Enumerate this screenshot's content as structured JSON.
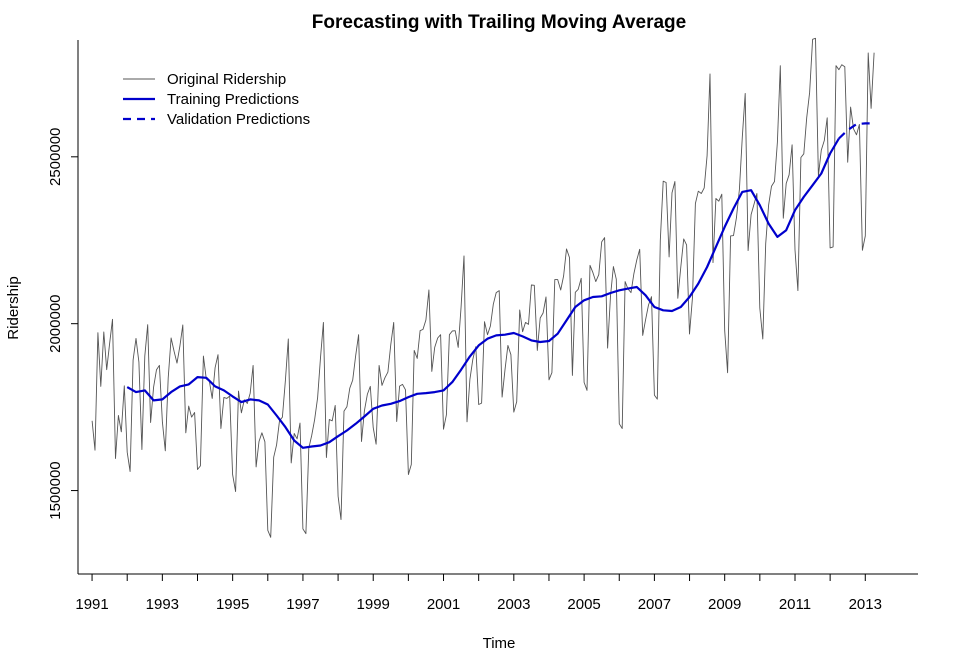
{
  "chart_data": {
    "type": "line",
    "title": "Forecasting with Trailing Moving Average",
    "xlabel": "Time",
    "ylabel": "Ridership",
    "xlim": [
      1990.6,
      2014.5
    ],
    "ylim": [
      1250000,
      2850000
    ],
    "x_ticks": [
      1991,
      1992,
      1993,
      1994,
      1995,
      1996,
      1997,
      1998,
      1999,
      2000,
      2001,
      2002,
      2003,
      2004,
      2005,
      2006,
      2007,
      2008,
      2009,
      2010,
      2011,
      2012,
      2013
    ],
    "x_tick_labels": [
      "1991",
      "1993",
      "1995",
      "1997",
      "1999",
      "2001",
      "2003",
      "2005",
      "2007",
      "2009",
      "2011",
      "2013"
    ],
    "x_tick_label_values": [
      1991,
      1993,
      1995,
      1997,
      1999,
      2001,
      2003,
      2005,
      2007,
      2009,
      2011,
      2013
    ],
    "y_ticks": [
      1500000,
      2000000,
      2500000
    ],
    "y_tick_labels": [
      "1500000",
      "2000000",
      "2500000"
    ],
    "legend": {
      "position": "top-left",
      "entries": [
        {
          "label": "Original Ridership",
          "color": "#555555",
          "style": "solid-thin"
        },
        {
          "label": "Training Predictions",
          "color": "#0000cc",
          "style": "solid-thick"
        },
        {
          "label": "Validation Predictions",
          "color": "#0000cc",
          "style": "dashed-thick"
        }
      ]
    },
    "series": [
      {
        "name": "Original Ridership",
        "color": "#555555",
        "x": [
          1991.0,
          1991.083,
          1991.167,
          1991.25,
          1991.333,
          1991.417,
          1991.5,
          1991.583,
          1991.667,
          1991.75,
          1991.833,
          1991.917,
          1992.0,
          1992.083,
          1992.167,
          1992.25,
          1992.333,
          1992.417,
          1992.5,
          1992.583,
          1992.667,
          1992.75,
          1992.833,
          1992.917,
          1993.0,
          1993.083,
          1993.167,
          1993.25,
          1993.333,
          1993.417,
          1993.5,
          1993.583,
          1993.667,
          1993.75,
          1993.833,
          1993.917,
          1994.0,
          1994.083,
          1994.167,
          1994.25,
          1994.333,
          1994.417,
          1994.5,
          1994.583,
          1994.667,
          1994.75,
          1994.833,
          1994.917,
          1995.0,
          1995.083,
          1995.167,
          1995.25,
          1995.333,
          1995.417,
          1995.5,
          1995.583,
          1995.667,
          1995.75,
          1995.833,
          1995.917,
          1996.0,
          1996.083,
          1996.167,
          1996.25,
          1996.333,
          1996.417,
          1996.5,
          1996.583,
          1996.667,
          1996.75,
          1996.833,
          1996.917,
          1997.0,
          1997.083,
          1997.167,
          1997.25,
          1997.333,
          1997.417,
          1997.5,
          1997.583,
          1997.667,
          1997.75,
          1997.833,
          1997.917,
          1998.0,
          1998.083,
          1998.167,
          1998.25,
          1998.333,
          1998.417,
          1998.5,
          1998.583,
          1998.667,
          1998.75,
          1998.833,
          1998.917,
          1999.0,
          1999.083,
          1999.167,
          1999.25,
          1999.333,
          1999.417,
          1999.5,
          1999.583,
          1999.667,
          1999.75,
          1999.833,
          1999.917,
          2000.0,
          2000.083,
          2000.167,
          2000.25,
          2000.333,
          2000.417,
          2000.5,
          2000.583,
          2000.667,
          2000.75,
          2000.833,
          2000.917,
          2001.0,
          2001.083,
          2001.167,
          2001.25,
          2001.333,
          2001.417,
          2001.5,
          2001.583,
          2001.667,
          2001.75,
          2001.833,
          2001.917,
          2002.0,
          2002.083,
          2002.167,
          2002.25,
          2002.333,
          2002.417,
          2002.5,
          2002.583,
          2002.667,
          2002.75,
          2002.833,
          2002.917,
          2003.0,
          2003.083,
          2003.167,
          2003.25,
          2003.333,
          2003.417,
          2003.5,
          2003.583,
          2003.667,
          2003.75,
          2003.833,
          2003.917,
          2004.0,
          2004.083,
          2004.167,
          2004.25,
          2004.333,
          2004.417,
          2004.5,
          2004.583,
          2004.667,
          2004.75,
          2004.833,
          2004.917,
          2005.0,
          2005.083,
          2005.167,
          2005.25,
          2005.333,
          2005.417,
          2005.5,
          2005.583,
          2005.667,
          2005.75,
          2005.833,
          2005.917,
          2006.0,
          2006.083,
          2006.167,
          2006.25,
          2006.333,
          2006.417,
          2006.5,
          2006.583,
          2006.667,
          2006.75,
          2006.833,
          2006.917,
          2007.0,
          2007.083,
          2007.167,
          2007.25,
          2007.333,
          2007.417,
          2007.5,
          2007.583,
          2007.667,
          2007.75,
          2007.833,
          2007.917,
          2008.0,
          2008.083,
          2008.167,
          2008.25,
          2008.333,
          2008.417,
          2008.5,
          2008.583,
          2008.667,
          2008.75,
          2008.833,
          2008.917,
          2009.0,
          2009.083,
          2009.167,
          2009.25,
          2009.333,
          2009.417,
          2009.5,
          2009.583,
          2009.667,
          2009.75,
          2009.833,
          2009.917,
          2010.0,
          2010.083,
          2010.167,
          2010.25,
          2010.333,
          2010.417,
          2010.5,
          2010.583,
          2010.667,
          2010.75,
          2010.833,
          2010.917,
          2011.0,
          2011.083,
          2011.167,
          2011.25,
          2011.333,
          2011.417,
          2011.5,
          2011.583,
          2011.667,
          2011.75,
          2011.833,
          2011.917,
          2012.0,
          2012.083,
          2012.167,
          2012.25,
          2012.333,
          2012.417,
          2012.5,
          2012.583,
          2012.667,
          2012.75,
          2012.833,
          2012.917,
          2013.0,
          2013.083,
          2013.167,
          2013.25
        ],
        "y": [
          1709000,
          1621000,
          1973000,
          1812000,
          1975000,
          1862000,
          1940000,
          2013000,
          1596000,
          1725000,
          1676000,
          1814000,
          1615000,
          1557000,
          1891000,
          1956000,
          1885000,
          1623000,
          1903000,
          1997000,
          1704000,
          1810000,
          1862000,
          1875000,
          1705000,
          1619000,
          1837000,
          1957000,
          1917000,
          1882000,
          1933000,
          1996000,
          1673000,
          1753000,
          1720000,
          1734000,
          1563000,
          1574000,
          1903000,
          1834000,
          1831000,
          1776000,
          1868000,
          1907000,
          1686000,
          1779000,
          1776000,
          1783000,
          1548000,
          1497000,
          1798000,
          1733000,
          1772000,
          1761000,
          1792000,
          1875000,
          1571000,
          1647000,
          1673000,
          1646000,
          1381000,
          1360000,
          1600000,
          1637000,
          1709000,
          1720000,
          1830000,
          1954000,
          1583000,
          1671000,
          1655000,
          1702000,
          1385000,
          1371000,
          1627000,
          1665000,
          1712000,
          1778000,
          1898000,
          2004000,
          1599000,
          1713000,
          1709000,
          1755000,
          1483000,
          1413000,
          1738000,
          1751000,
          1807000,
          1831000,
          1905000,
          1967000,
          1647000,
          1739000,
          1789000,
          1812000,
          1689000,
          1639000,
          1875000,
          1815000,
          1838000,
          1855000,
          1938000,
          2004000,
          1707000,
          1813000,
          1818000,
          1802000,
          1548000,
          1578000,
          1920000,
          1896000,
          1979000,
          1983000,
          2011000,
          2101000,
          1857000,
          1929000,
          1957000,
          1967000,
          1684000,
          1727000,
          1967000,
          1978000,
          1979000,
          1929000,
          2051000,
          2203000,
          1706000,
          1833000,
          1893000,
          1931000,
          1758000,
          1762000,
          2006000,
          1967000,
          1993000,
          2058000,
          2093000,
          2099000,
          1780000,
          1862000,
          1935000,
          1907000,
          1735000,
          1766000,
          2041000,
          1976000,
          2004000,
          1998000,
          2116000,
          2115000,
          1920000,
          2017000,
          2032000,
          2080000,
          1832000,
          1853000,
          2132000,
          2132000,
          2101000,
          2143000,
          2224000,
          2198000,
          1845000,
          2094000,
          2103000,
          2136000,
          1824000,
          1800000,
          2175000,
          2153000,
          2126000,
          2147000,
          2245000,
          2258000,
          1927000,
          2083000,
          2171000,
          2133000,
          1700000,
          1686000,
          2126000,
          2104000,
          2093000,
          2150000,
          2191000,
          2223000,
          1965000,
          2012000,
          2056000,
          2081000,
          1786000,
          1774000,
          2249000,
          2427000,
          2423000,
          2200000,
          2392000,
          2426000,
          2076000,
          2170000,
          2254000,
          2236000,
          1969000,
          2079000,
          2360000,
          2397000,
          2390000,
          2407000,
          2504000,
          2748000,
          2183000,
          2375000,
          2367000,
          2388000,
          1979000,
          1853000,
          2263000,
          2264000,
          2317000,
          2402000,
          2559000,
          2690000,
          2219000,
          2327000,
          2358000,
          2390000,
          2047000,
          1954000,
          2240000,
          2355000,
          2412000,
          2426000,
          2544000,
          2773000,
          2316000,
          2420000,
          2446000,
          2536000,
          2221000,
          2099000,
          2498000,
          2509000,
          2617000,
          2692000,
          2852000,
          2855000,
          2443000,
          2520000,
          2549000,
          2617000,
          2227000,
          2230000,
          2773000,
          2761000,
          2776000,
          2770000,
          2484000,
          2649000,
          2583000,
          2566000,
          2597000,
          2220000,
          2263000,
          2811000,
          2645000,
          2812000
        ]
      },
      {
        "name": "Training Predictions",
        "color": "#0000cc",
        "x": [
          1992.0,
          1992.25,
          1992.5,
          1992.75,
          1993.0,
          1993.25,
          1993.5,
          1993.75,
          1994.0,
          1994.25,
          1994.5,
          1994.75,
          1995.0,
          1995.25,
          1995.5,
          1995.75,
          1996.0,
          1996.25,
          1996.5,
          1996.75,
          1997.0,
          1997.25,
          1997.5,
          1997.75,
          1998.0,
          1998.25,
          1998.5,
          1998.75,
          1999.0,
          1999.25,
          1999.5,
          1999.75,
          2000.0,
          2000.25,
          2000.5,
          2000.75,
          2001.0,
          2001.25,
          2001.5,
          2001.75,
          2002.0,
          2002.25,
          2002.5,
          2002.75,
          2003.0,
          2003.25,
          2003.5,
          2003.75,
          2004.0,
          2004.25,
          2004.5,
          2004.75,
          2005.0,
          2005.25,
          2005.5,
          2005.75,
          2006.0,
          2006.25,
          2006.5,
          2006.75,
          2007.0,
          2007.25,
          2007.5,
          2007.75,
          2008.0,
          2008.25,
          2008.5,
          2008.75,
          2009.0,
          2009.25,
          2009.5,
          2009.75,
          2010.0,
          2010.25,
          2010.5,
          2010.75,
          2011.0,
          2011.25,
          2011.5,
          2011.75,
          2012.0,
          2012.25
        ],
        "y": [
          1810000,
          1795000,
          1800000,
          1770000,
          1773000,
          1795000,
          1812000,
          1818000,
          1840000,
          1838000,
          1812000,
          1800000,
          1782000,
          1765000,
          1773000,
          1770000,
          1758000,
          1725000,
          1690000,
          1650000,
          1628000,
          1632000,
          1635000,
          1645000,
          1663000,
          1680000,
          1700000,
          1722000,
          1745000,
          1755000,
          1760000,
          1768000,
          1780000,
          1790000,
          1792000,
          1795000,
          1800000,
          1825000,
          1862000,
          1902000,
          1935000,
          1955000,
          1965000,
          1967000,
          1972000,
          1962000,
          1950000,
          1945000,
          1948000,
          1970000,
          2010000,
          2050000,
          2070000,
          2080000,
          2082000,
          2092000,
          2100000,
          2105000,
          2110000,
          2085000,
          2050000,
          2040000,
          2038000,
          2050000,
          2080000,
          2120000,
          2170000,
          2230000,
          2290000,
          2345000,
          2395000,
          2400000,
          2355000,
          2300000,
          2260000,
          2280000,
          2340000,
          2380000,
          2415000,
          2450000,
          2510000,
          2555000
        ]
      },
      {
        "name": "Validation Predictions",
        "color": "#0000cc",
        "x": [
          2012.25,
          2012.5,
          2012.75,
          2013.0,
          2013.25
        ],
        "y": [
          2555000,
          2580000,
          2598000,
          2600000,
          2600000
        ]
      }
    ]
  }
}
